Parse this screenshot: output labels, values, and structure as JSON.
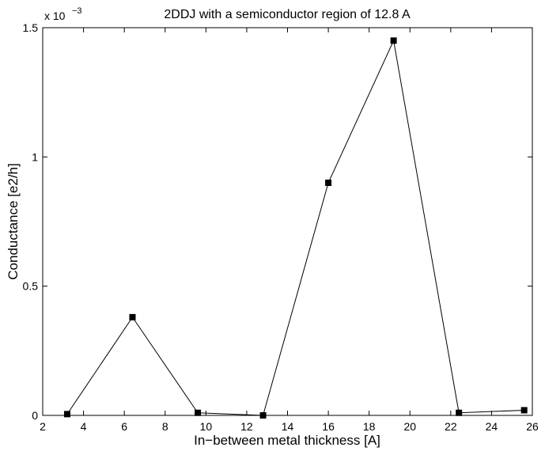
{
  "chart_data": {
    "type": "line",
    "title": "2DDJ with a semiconductor region of 12.8 A",
    "xlabel": "In−between metal thickness [A]",
    "ylabel": "Conductance [e2/h]",
    "xlim": [
      2,
      26
    ],
    "ylim": [
      0,
      0.0015
    ],
    "x_ticks": [
      2,
      4,
      6,
      8,
      10,
      12,
      14,
      16,
      18,
      20,
      22,
      24,
      26
    ],
    "y_ticks": [
      0,
      0.0005,
      0.001,
      0.0015
    ],
    "y_tick_labels": [
      "0",
      "0.5",
      "1",
      "1.5"
    ],
    "y_exponent_label": "x 10",
    "y_exponent_power": "−3",
    "grid": false,
    "series": [
      {
        "x": [
          3.2,
          6.4,
          9.6,
          12.8,
          16.0,
          19.2,
          22.4,
          25.6
        ],
        "y": [
          5e-06,
          0.00038,
          1e-05,
          0.0,
          0.0009,
          0.00145,
          1e-05,
          2e-05
        ],
        "color": "#000000",
        "marker": "square"
      }
    ]
  }
}
